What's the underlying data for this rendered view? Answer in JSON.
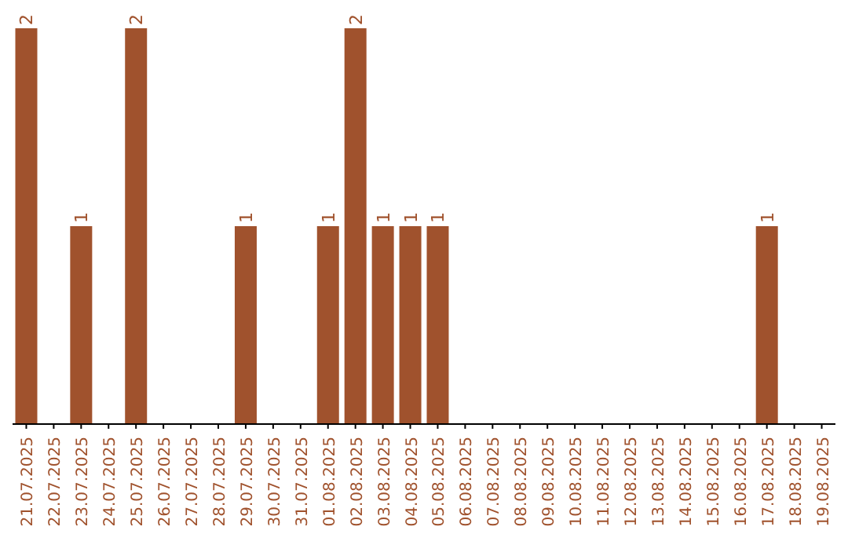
{
  "chart_data": {
    "type": "bar",
    "categories": [
      "21.07.2025",
      "22.07.2025",
      "23.07.2025",
      "24.07.2025",
      "25.07.2025",
      "26.07.2025",
      "27.07.2025",
      "28.07.2025",
      "29.07.2025",
      "30.07.2025",
      "31.07.2025",
      "01.08.2025",
      "02.08.2025",
      "03.08.2025",
      "04.08.2025",
      "05.08.2025",
      "06.08.2025",
      "07.08.2025",
      "08.08.2025",
      "09.08.2025",
      "10.08.2025",
      "11.08.2025",
      "12.08.2025",
      "13.08.2025",
      "14.08.2025",
      "15.08.2025",
      "16.08.2025",
      "17.08.2025",
      "18.08.2025",
      "19.08.2025"
    ],
    "values": [
      2,
      0,
      1,
      0,
      2,
      0,
      0,
      0,
      1,
      0,
      0,
      1,
      2,
      1,
      1,
      1,
      0,
      0,
      0,
      0,
      0,
      0,
      0,
      0,
      0,
      0,
      0,
      1,
      0,
      0
    ],
    "value_labels": [
      "2",
      null,
      "1",
      null,
      "2",
      null,
      null,
      null,
      "1",
      null,
      null,
      "1",
      "2",
      "1",
      "1",
      "1",
      null,
      null,
      null,
      null,
      null,
      null,
      null,
      null,
      null,
      null,
      null,
      "1",
      null,
      null
    ],
    "color": "#a0522d",
    "ylim": [
      0,
      2
    ],
    "tick_labels": "x"
  }
}
